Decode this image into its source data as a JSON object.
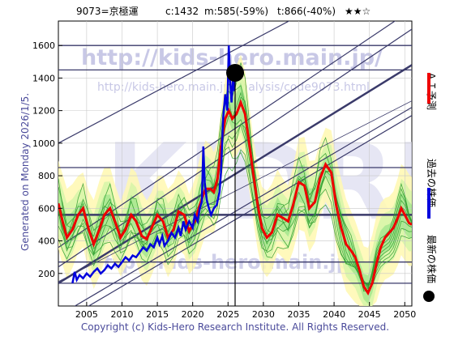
{
  "header": {
    "code_name": "9073=京極運",
    "current": "c:1432",
    "min_stat": "m:585(-59%)",
    "max_stat": "t:866(-40%)",
    "stars": "★★☆"
  },
  "watermark": {
    "url_main": "http://kids-hero.main.jp/",
    "url_path": "http://kids-hero.main.jp/analysis/code9073.html",
    "url_bottom": "http://kids-hero.main.jp/",
    "big_text": "KIDRI"
  },
  "side_left": "Generated on Monday 2026/1/5.",
  "legend": {
    "ai_label": "ＡＩ予測",
    "past_label": "過去の株価",
    "latest_label": "最新の株価",
    "ai_color": "#ee0000",
    "past_color": "#0000dd",
    "latest_color": "#000000"
  },
  "footer": "Copyright (c) Kids-Hero Research Institute. All Rights Reserved.",
  "chart_data": {
    "type": "line",
    "xlim": [
      2001,
      2051
    ],
    "ylim": [
      0,
      1750
    ],
    "x_ticks": [
      2005,
      2010,
      2015,
      2020,
      2025,
      2030,
      2035,
      2040,
      2045,
      2050
    ],
    "y_ticks": [
      200,
      400,
      600,
      800,
      1000,
      1200,
      1400,
      1600
    ],
    "grid": true,
    "horizontal_levels": [
      1600,
      1450,
      850,
      560,
      270,
      140
    ],
    "latest_point": {
      "x": 2026.0,
      "y": 1432
    },
    "current_year_marker": 2026.0,
    "series": [
      {
        "role": "past",
        "points": [
          [
            2003.0,
            140
          ],
          [
            2003.3,
            210
          ],
          [
            2003.6,
            160
          ],
          [
            2004.0,
            190
          ],
          [
            2004.5,
            170
          ],
          [
            2005.0,
            200
          ],
          [
            2005.5,
            180
          ],
          [
            2006.0,
            210
          ],
          [
            2006.5,
            230
          ],
          [
            2007.0,
            200
          ],
          [
            2007.5,
            220
          ],
          [
            2008.0,
            250
          ],
          [
            2008.5,
            230
          ],
          [
            2009.0,
            260
          ],
          [
            2009.5,
            240
          ],
          [
            2010.0,
            270
          ],
          [
            2010.5,
            300
          ],
          [
            2011.0,
            280
          ],
          [
            2011.5,
            310
          ],
          [
            2012.0,
            300
          ],
          [
            2012.5,
            330
          ],
          [
            2013.0,
            360
          ],
          [
            2013.5,
            340
          ],
          [
            2014.0,
            380
          ],
          [
            2014.5,
            360
          ],
          [
            2015.0,
            420
          ],
          [
            2015.3,
            380
          ],
          [
            2015.7,
            430
          ],
          [
            2016.0,
            370
          ],
          [
            2016.5,
            400
          ],
          [
            2017.0,
            450
          ],
          [
            2017.5,
            420
          ],
          [
            2018.0,
            480
          ],
          [
            2018.3,
            430
          ],
          [
            2018.7,
            520
          ],
          [
            2019.0,
            470
          ],
          [
            2019.5,
            520
          ],
          [
            2020.0,
            480
          ],
          [
            2020.3,
            560
          ],
          [
            2020.7,
            520
          ],
          [
            2021.0,
            600
          ],
          [
            2021.3,
            640
          ],
          [
            2021.5,
            980
          ],
          [
            2021.7,
            760
          ],
          [
            2022.0,
            650
          ],
          [
            2022.3,
            600
          ],
          [
            2022.6,
            560
          ],
          [
            2023.0,
            600
          ],
          [
            2023.4,
            620
          ],
          [
            2023.8,
            700
          ],
          [
            2024.0,
            820
          ],
          [
            2024.3,
            1150
          ],
          [
            2024.6,
            1300
          ],
          [
            2024.9,
            1200
          ],
          [
            2025.1,
            1600
          ],
          [
            2025.3,
            1380
          ],
          [
            2025.5,
            1250
          ],
          [
            2025.7,
            1400
          ],
          [
            2025.9,
            1320
          ],
          [
            2026.0,
            1432
          ]
        ]
      },
      {
        "role": "ai_forecast",
        "points": [
          [
            2001.0,
            630
          ],
          [
            2001.6,
            520
          ],
          [
            2002.2,
            420
          ],
          [
            2003.0,
            470
          ],
          [
            2003.8,
            560
          ],
          [
            2004.5,
            600
          ],
          [
            2005.3,
            470
          ],
          [
            2006.0,
            380
          ],
          [
            2006.8,
            470
          ],
          [
            2007.5,
            560
          ],
          [
            2008.3,
            600
          ],
          [
            2009.0,
            520
          ],
          [
            2009.8,
            420
          ],
          [
            2010.5,
            470
          ],
          [
            2011.3,
            560
          ],
          [
            2012.0,
            520
          ],
          [
            2012.8,
            430
          ],
          [
            2013.5,
            410
          ],
          [
            2014.2,
            480
          ],
          [
            2015.0,
            560
          ],
          [
            2015.8,
            520
          ],
          [
            2016.5,
            420
          ],
          [
            2017.3,
            470
          ],
          [
            2018.0,
            580
          ],
          [
            2018.8,
            560
          ],
          [
            2019.5,
            460
          ],
          [
            2020.3,
            520
          ],
          [
            2021.0,
            620
          ],
          [
            2021.8,
            720
          ],
          [
            2022.5,
            720
          ],
          [
            2023.0,
            700
          ],
          [
            2023.5,
            780
          ],
          [
            2024.0,
            980
          ],
          [
            2024.6,
            1150
          ],
          [
            2025.1,
            1200
          ],
          [
            2025.6,
            1150
          ],
          [
            2026.2,
            1180
          ],
          [
            2026.8,
            1250
          ],
          [
            2027.4,
            1180
          ],
          [
            2028.0,
            1000
          ],
          [
            2028.6,
            800
          ],
          [
            2029.2,
            620
          ],
          [
            2029.8,
            480
          ],
          [
            2030.5,
            420
          ],
          [
            2031.2,
            450
          ],
          [
            2032.0,
            560
          ],
          [
            2032.8,
            540
          ],
          [
            2033.5,
            520
          ],
          [
            2034.2,
            620
          ],
          [
            2035.0,
            760
          ],
          [
            2035.8,
            740
          ],
          [
            2036.5,
            600
          ],
          [
            2037.3,
            640
          ],
          [
            2038.0,
            780
          ],
          [
            2038.8,
            870
          ],
          [
            2039.6,
            820
          ],
          [
            2040.3,
            620
          ],
          [
            2041.0,
            480
          ],
          [
            2041.7,
            380
          ],
          [
            2042.4,
            340
          ],
          [
            2043.0,
            300
          ],
          [
            2043.6,
            220
          ],
          [
            2044.2,
            120
          ],
          [
            2044.8,
            80
          ],
          [
            2045.4,
            140
          ],
          [
            2046.0,
            260
          ],
          [
            2046.6,
            360
          ],
          [
            2047.2,
            420
          ],
          [
            2047.8,
            450
          ],
          [
            2048.4,
            480
          ],
          [
            2049.0,
            540
          ],
          [
            2049.5,
            600
          ],
          [
            2050.0,
            560
          ],
          [
            2050.6,
            510
          ],
          [
            2051.0,
            500
          ]
        ]
      }
    ]
  }
}
